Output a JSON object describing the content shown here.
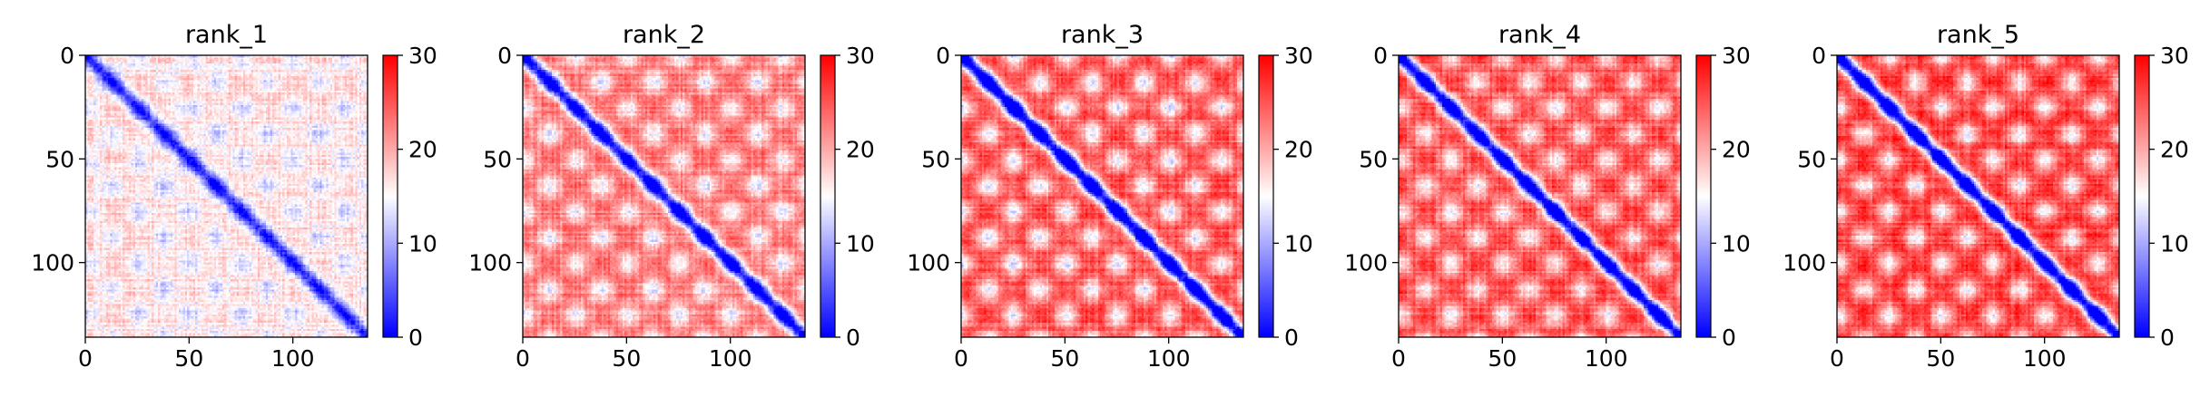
{
  "chart_data": [
    {
      "type": "heatmap",
      "title": "rank_1",
      "n": 136,
      "xlim": [
        0,
        136
      ],
      "ylim": [
        136,
        0
      ],
      "xticks": [
        0,
        50,
        100
      ],
      "yticks": [
        0,
        50,
        100
      ],
      "colorbar": {
        "min": 0,
        "max": 30,
        "ticks": [
          0,
          10,
          20,
          30
        ],
        "colors": [
          "#0000ff",
          "#ffffff",
          "#ff0000"
        ]
      },
      "pattern": {
        "base": 17,
        "diag_width": 3.5,
        "band_spacing": 25,
        "band_strength": 0.45
      }
    },
    {
      "type": "heatmap",
      "title": "rank_2",
      "n": 136,
      "xlim": [
        0,
        136
      ],
      "ylim": [
        136,
        0
      ],
      "xticks": [
        0,
        50,
        100
      ],
      "yticks": [
        0,
        50,
        100
      ],
      "colorbar": {
        "min": 0,
        "max": 30,
        "ticks": [
          0,
          10,
          20,
          30
        ],
        "colors": [
          "#0000ff",
          "#ffffff",
          "#ff0000"
        ]
      },
      "pattern": {
        "base": 23,
        "diag_width": 3.5,
        "band_spacing": 25,
        "band_strength": 0.75
      }
    },
    {
      "type": "heatmap",
      "title": "rank_3",
      "n": 136,
      "xlim": [
        0,
        136
      ],
      "ylim": [
        136,
        0
      ],
      "xticks": [
        0,
        50,
        100
      ],
      "yticks": [
        0,
        50,
        100
      ],
      "colorbar": {
        "min": 0,
        "max": 30,
        "ticks": [
          0,
          10,
          20,
          30
        ],
        "colors": [
          "#0000ff",
          "#ffffff",
          "#ff0000"
        ]
      },
      "pattern": {
        "base": 26,
        "diag_width": 3.5,
        "band_spacing": 25,
        "band_strength": 0.9
      }
    },
    {
      "type": "heatmap",
      "title": "rank_4",
      "n": 136,
      "xlim": [
        0,
        136
      ],
      "ylim": [
        136,
        0
      ],
      "xticks": [
        0,
        50,
        100
      ],
      "yticks": [
        0,
        50,
        100
      ],
      "colorbar": {
        "min": 0,
        "max": 30,
        "ticks": [
          0,
          10,
          20,
          30
        ],
        "colors": [
          "#0000ff",
          "#ffffff",
          "#ff0000"
        ]
      },
      "pattern": {
        "base": 26,
        "diag_width": 3.5,
        "band_spacing": 25,
        "band_strength": 0.85
      }
    },
    {
      "type": "heatmap",
      "title": "rank_5",
      "n": 136,
      "xlim": [
        0,
        136
      ],
      "ylim": [
        136,
        0
      ],
      "xticks": [
        0,
        50,
        100
      ],
      "yticks": [
        0,
        50,
        100
      ],
      "colorbar": {
        "min": 0,
        "max": 30,
        "ticks": [
          0,
          10,
          20,
          30
        ],
        "colors": [
          "#0000ff",
          "#ffffff",
          "#ff0000"
        ]
      },
      "pattern": {
        "base": 27,
        "diag_width": 3.5,
        "band_spacing": 25,
        "band_strength": 0.9
      }
    }
  ]
}
